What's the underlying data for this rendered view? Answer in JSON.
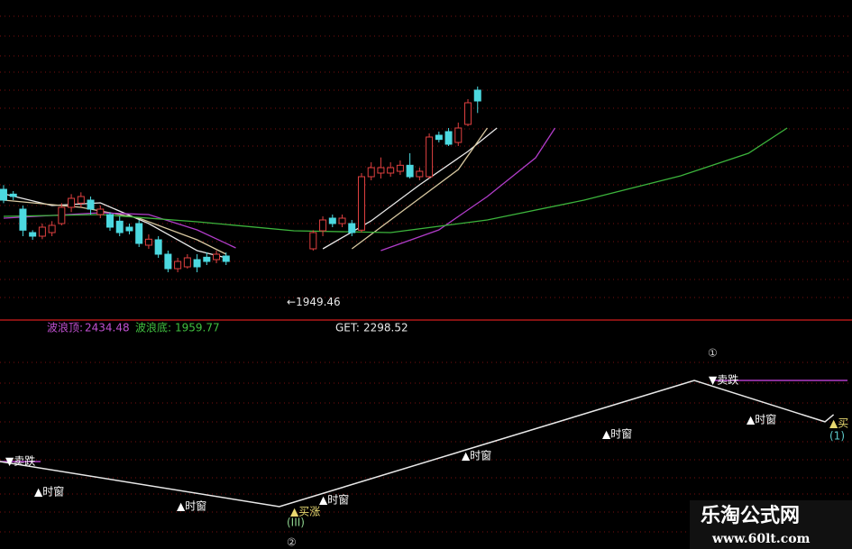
{
  "chart_data": {
    "type": "candlestick",
    "xlim": [
      -0.37,
      87.7
    ],
    "ylim": [
      1911.5,
      2444
    ],
    "up_color": "#e04040",
    "down_color": "#4cd9e0",
    "candles": {
      "open": [
        2129,
        2121,
        2096,
        2057,
        2051,
        2057,
        2072,
        2099,
        2106,
        2111,
        2087,
        2087,
        2076,
        2066,
        2072,
        2036,
        2045,
        2021,
        1997,
        2000,
        2012,
        2016,
        2012,
        2018,
        null,
        null,
        null,
        null,
        null,
        null,
        null,
        null,
        2030,
        2060,
        2081,
        2072,
        2072,
        2061,
        2150,
        2156,
        2156,
        2159,
        2169,
        2150,
        2150,
        2219,
        2225,
        2207,
        2237,
        2294
      ],
      "high": [
        2136,
        2126,
        2102,
        2061,
        2072,
        2076,
        2106,
        2121,
        2124,
        2117,
        2102,
        2091,
        2084,
        2072,
        2078,
        2054,
        2051,
        2027,
        2015,
        2021,
        2021,
        2024,
        2027,
        2024,
        null,
        null,
        null,
        null,
        null,
        null,
        null,
        null,
        2061,
        2084,
        2087,
        2087,
        2078,
        2156,
        2174,
        2182,
        2174,
        2177,
        2189,
        2165,
        2222,
        2225,
        2231,
        2240,
        2279,
        2300
      ],
      "low": [
        2106,
        2111,
        2051,
        2045,
        2046,
        2051,
        2069,
        2091,
        2099,
        2087,
        2081,
        2060,
        2051,
        2054,
        2033,
        2030,
        2015,
        1991,
        1991,
        1997,
        1991,
        2003,
        2006,
        2003,
        null,
        null,
        null,
        null,
        null,
        null,
        null,
        null,
        2027,
        2051,
        2066,
        2066,
        2051,
        2057,
        2144,
        2147,
        2150,
        2153,
        2147,
        2144,
        2147,
        2207,
        2201,
        2201,
        2234,
        2256
      ],
      "close": [
        2111,
        2117,
        2061,
        2051,
        2066,
        2069,
        2099,
        2114,
        2117,
        2096,
        2096,
        2066,
        2057,
        2060,
        2039,
        2046,
        2021,
        1997,
        2009,
        2015,
        2000,
        2009,
        2021,
        2009,
        null,
        null,
        null,
        null,
        null,
        null,
        null,
        null,
        2057,
        2078,
        2072,
        2081,
        2057,
        2150,
        2165,
        2165,
        2165,
        2169,
        2150,
        2159,
        2216,
        2212,
        2204,
        2231,
        2273,
        2276
      ]
    },
    "series": [
      {
        "color": "#e8e8e8",
        "x": [
          0,
          5,
          10,
          15,
          20,
          23,
          28,
          33,
          38,
          43,
          48,
          51
        ],
        "values": [
          2121.5,
          2102,
          2106.5,
          2072,
          2027,
          2015,
          null,
          2030,
          2076.5,
          2136.5,
          2192,
          2231
        ]
      },
      {
        "color": "#d8c8a0",
        "x": [
          0,
          8,
          14,
          20,
          23,
          28,
          36,
          42,
          47,
          50
        ],
        "values": [
          2111,
          2099,
          2081,
          2045,
          2021,
          null,
          2030,
          2102,
          2162,
          2231
        ]
      },
      {
        "color": "#b03cc8",
        "x": [
          0,
          10,
          15,
          20,
          24,
          30,
          39,
          45,
          50,
          55,
          57
        ],
        "values": [
          2081,
          2090,
          2087,
          2061.5,
          2031.5,
          null,
          2027,
          2061.5,
          2117,
          2181.5,
          2231
        ]
      },
      {
        "color": "#3cb43c",
        "x": [
          0,
          10,
          20,
          30,
          40,
          50,
          60,
          70,
          77,
          81
        ],
        "values": [
          2084,
          2087,
          2075,
          2060,
          2057,
          2078,
          2111,
          2151.5,
          2189,
          2231
        ]
      }
    ],
    "low_marker": {
      "arrow": "←",
      "value": 1949.46
    },
    "info": {
      "wave_top_label": "波浪顶:",
      "wave_top": 2434.48,
      "wave_bottom_label": "波浪底:",
      "wave_bottom": 1959.77,
      "get_label": "GET:",
      "get": 2298.52
    },
    "lower": {
      "type": "line",
      "color": "#e8e8e8",
      "ylim": [
        0,
        100
      ],
      "x": [
        -0.4,
        28.5,
        71.4,
        84.9,
        85.8
      ],
      "values": [
        41.5,
        20.1,
        79.9,
        60.3,
        63.7
      ]
    },
    "annotations": [
      "▼卖跌",
      "▲时窗",
      "▲时窗",
      "▲买涨",
      "(III)",
      "▲时窗",
      "▲时窗",
      "▲时窗",
      "▼卖跌",
      "▲时窗",
      "▲买",
      "(1)",
      "②",
      "①"
    ]
  },
  "watermark": {
    "title": "乐淘公式网",
    "url": "www.60lt.com"
  }
}
